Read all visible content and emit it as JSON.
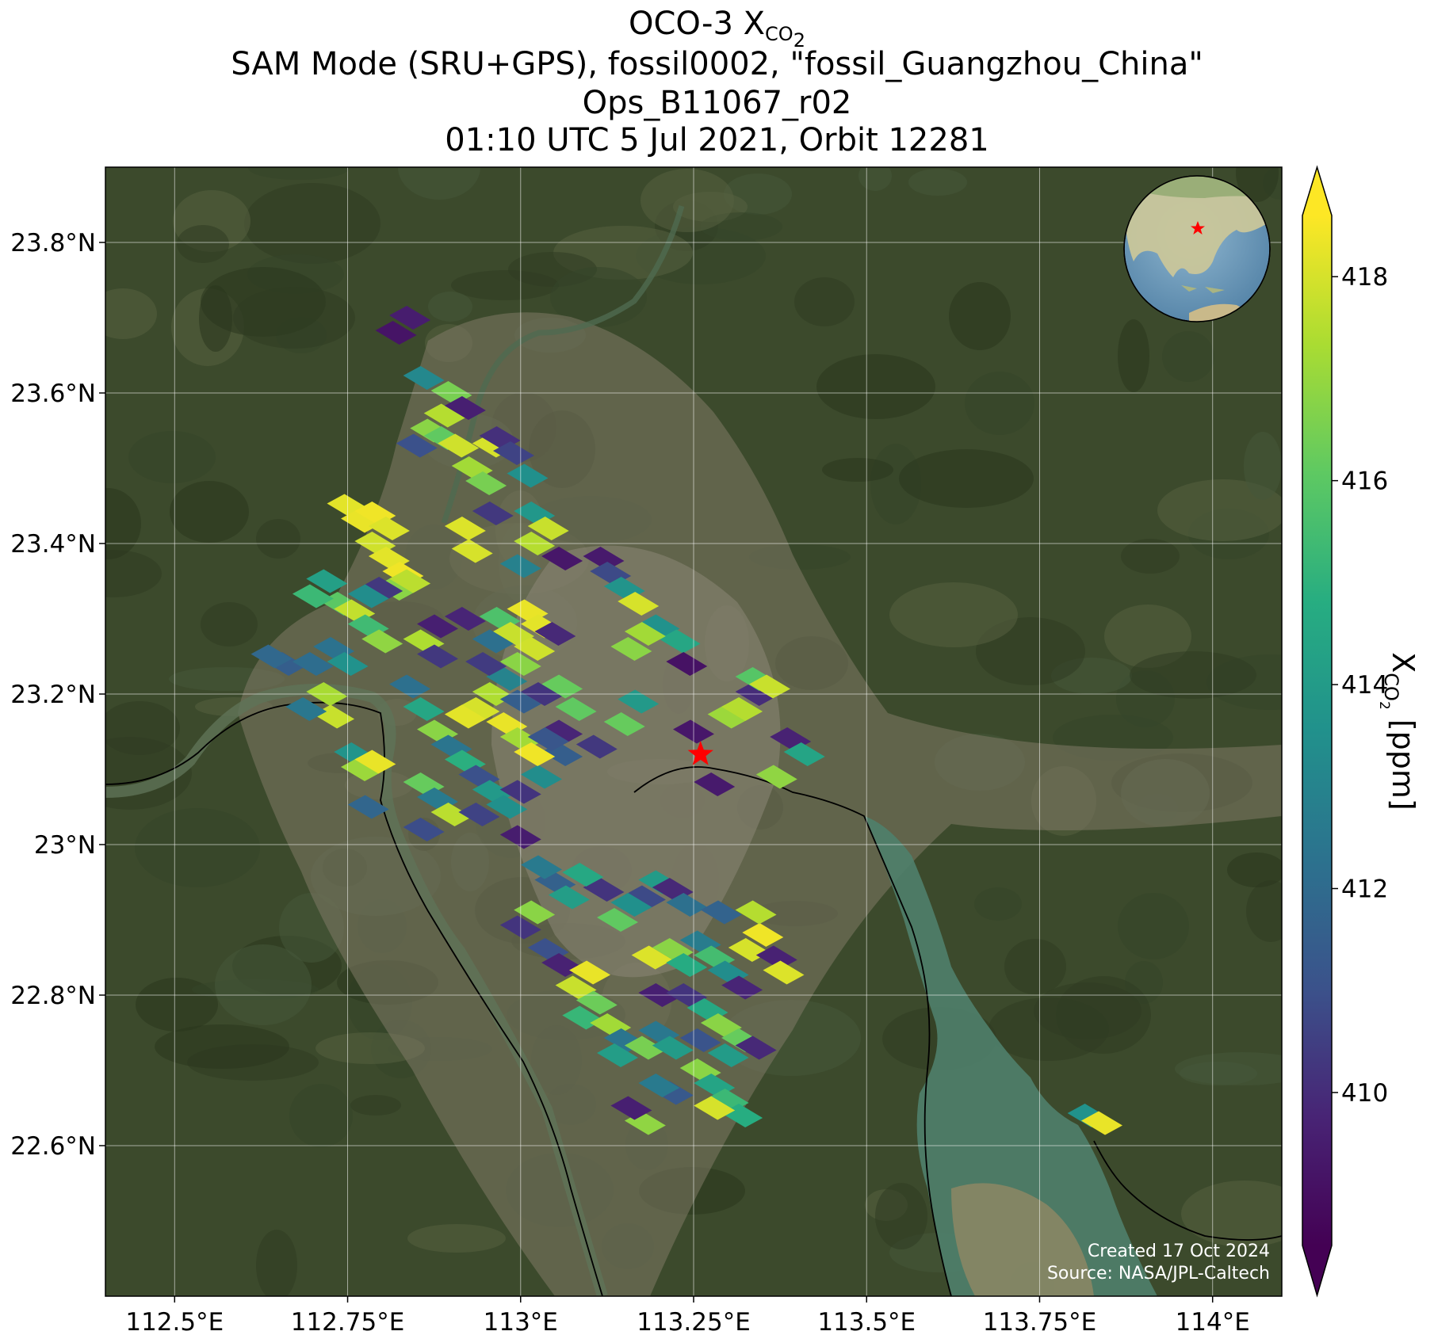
{
  "title": {
    "line1_main": "OCO-3 X",
    "line1_sub": "CO",
    "line1_sub2": "2",
    "line2": "SAM Mode (SRU+GPS), fossil0002, \"fossil_Guangzhou_China\"",
    "line3": "Ops_B11067_r02",
    "line4": "01:10 UTC 5 Jul 2021, Orbit 12281"
  },
  "map": {
    "lon_range": [
      112.4,
      114.1
    ],
    "lat_range": [
      22.4,
      23.9
    ],
    "lon_ticks": [
      {
        "value": 112.5,
        "label": "112.5°E"
      },
      {
        "value": 112.75,
        "label": "112.75°E"
      },
      {
        "value": 113.0,
        "label": "113°E"
      },
      {
        "value": 113.25,
        "label": "113.25°E"
      },
      {
        "value": 113.5,
        "label": "113.5°E"
      },
      {
        "value": 113.75,
        "label": "113.75°E"
      },
      {
        "value": 114.0,
        "label": "114°E"
      }
    ],
    "lat_ticks": [
      {
        "value": 23.8,
        "label": "23.8°N"
      },
      {
        "value": 23.6,
        "label": "23.6°N"
      },
      {
        "value": 23.4,
        "label": "23.4°N"
      },
      {
        "value": 23.2,
        "label": "23.2°N"
      },
      {
        "value": 23.0,
        "label": "23°N"
      },
      {
        "value": 22.8,
        "label": "22.8°N"
      },
      {
        "value": 22.6,
        "label": "22.6°N"
      }
    ],
    "grid": true,
    "target": {
      "lon": 113.26,
      "lat": 23.12,
      "marker": "red-star"
    },
    "basemap": "satellite-imagery",
    "inset": "globe-locator",
    "credit_line1": "Created 17 Oct 2024",
    "credit_line2": "Source: NASA/JPL-Caltech"
  },
  "colorbar": {
    "colormap": "viridis",
    "range": [
      408.5,
      418.6
    ],
    "extend": "both",
    "ticks": [
      410,
      412,
      414,
      416,
      418
    ],
    "tick_labels": [
      "410",
      "412",
      "414",
      "416",
      "418"
    ],
    "label_main": "X",
    "label_sub": "CO",
    "label_sub2": "2",
    "label_unit": " [ppm]"
  },
  "chart_data": {
    "type": "scatter",
    "xlabel": "",
    "ylabel": "",
    "x_unit": "degrees longitude",
    "y_unit": "degrees latitude",
    "value_unit": "ppm",
    "points": [
      [
        112.82,
        23.68,
        409.2
      ],
      [
        112.84,
        23.7,
        409.5
      ],
      [
        112.86,
        23.62,
        413.2
      ],
      [
        112.9,
        23.6,
        416.5
      ],
      [
        112.89,
        23.57,
        417.5
      ],
      [
        112.92,
        23.58,
        409.6
      ],
      [
        112.87,
        23.55,
        416.8
      ],
      [
        112.89,
        23.54,
        416.1
      ],
      [
        112.85,
        23.53,
        411.0
      ],
      [
        112.91,
        23.53,
        417.9
      ],
      [
        112.96,
        23.53,
        418.0
      ],
      [
        112.97,
        23.54,
        410.1
      ],
      [
        112.99,
        23.52,
        410.6
      ],
      [
        112.93,
        23.5,
        417.2
      ],
      [
        112.95,
        23.48,
        416.5
      ],
      [
        113.01,
        23.49,
        413.5
      ],
      [
        112.96,
        23.44,
        410.3
      ],
      [
        112.92,
        23.42,
        418.1
      ],
      [
        112.93,
        23.39,
        418.0
      ],
      [
        113.02,
        23.44,
        413.8
      ],
      [
        113.04,
        23.42,
        417.8
      ],
      [
        113.02,
        23.4,
        417.5
      ],
      [
        113.0,
        23.37,
        412.9
      ],
      [
        113.06,
        23.38,
        409.3
      ],
      [
        113.12,
        23.38,
        409.4
      ],
      [
        113.13,
        23.36,
        410.8
      ],
      [
        113.15,
        23.34,
        413.7
      ],
      [
        113.17,
        23.32,
        418.0
      ],
      [
        113.2,
        23.29,
        413.6
      ],
      [
        113.23,
        23.27,
        414.5
      ],
      [
        113.24,
        23.24,
        409.1
      ],
      [
        112.75,
        23.45,
        418.2
      ],
      [
        112.77,
        23.43,
        418.3
      ],
      [
        112.79,
        23.44,
        418.4
      ],
      [
        112.81,
        23.42,
        418.1
      ],
      [
        112.79,
        23.4,
        417.9
      ],
      [
        112.81,
        23.38,
        418.2
      ],
      [
        112.83,
        23.36,
        418.4
      ],
      [
        112.82,
        23.34,
        416.8
      ],
      [
        112.84,
        23.35,
        417.6
      ],
      [
        112.8,
        23.34,
        410.3
      ],
      [
        112.78,
        23.33,
        413.4
      ],
      [
        112.74,
        23.32,
        416.0
      ],
      [
        112.7,
        23.33,
        415.3
      ],
      [
        112.72,
        23.35,
        414.2
      ],
      [
        112.76,
        23.31,
        417.7
      ],
      [
        112.78,
        23.29,
        415.4
      ],
      [
        112.8,
        23.27,
        416.9
      ],
      [
        112.73,
        23.26,
        412.3
      ],
      [
        112.66,
        23.24,
        411.5
      ],
      [
        112.64,
        23.25,
        411.9
      ],
      [
        112.7,
        23.24,
        412.1
      ],
      [
        112.75,
        23.24,
        413.6
      ],
      [
        112.72,
        23.2,
        417.3
      ],
      [
        112.73,
        23.17,
        417.8
      ],
      [
        112.69,
        23.18,
        412.5
      ],
      [
        112.76,
        23.12,
        413.7
      ],
      [
        112.77,
        23.1,
        417.1
      ],
      [
        112.79,
        23.11,
        418.3
      ],
      [
        112.78,
        23.05,
        411.8
      ],
      [
        112.86,
        23.27,
        417.4
      ],
      [
        112.88,
        23.25,
        410.3
      ],
      [
        112.84,
        23.21,
        412.2
      ],
      [
        112.86,
        23.18,
        414.5
      ],
      [
        112.88,
        23.15,
        416.8
      ],
      [
        112.9,
        23.13,
        412.4
      ],
      [
        112.92,
        23.11,
        414.9
      ],
      [
        112.94,
        23.09,
        411.0
      ],
      [
        112.96,
        23.07,
        413.9
      ],
      [
        112.86,
        23.08,
        416.2
      ],
      [
        112.88,
        23.06,
        412.6
      ],
      [
        112.9,
        23.04,
        417.6
      ],
      [
        112.86,
        23.02,
        410.9
      ],
      [
        112.94,
        23.04,
        410.6
      ],
      [
        112.98,
        23.05,
        413.5
      ],
      [
        113.0,
        23.01,
        409.5
      ],
      [
        113.0,
        23.07,
        410.2
      ],
      [
        113.03,
        23.09,
        413.4
      ],
      [
        113.06,
        23.12,
        411.5
      ],
      [
        113.06,
        23.15,
        409.8
      ],
      [
        113.08,
        23.18,
        416.1
      ],
      [
        112.97,
        23.3,
        415.7
      ],
      [
        112.99,
        23.28,
        417.8
      ],
      [
        113.01,
        23.31,
        418.3
      ],
      [
        113.03,
        23.29,
        418.2
      ],
      [
        113.02,
        23.26,
        417.9
      ],
      [
        113.0,
        23.24,
        416.8
      ],
      [
        112.98,
        23.22,
        413.0
      ],
      [
        112.96,
        23.2,
        417.4
      ],
      [
        112.94,
        23.18,
        418.0
      ],
      [
        112.92,
        23.17,
        418.2
      ],
      [
        112.98,
        23.16,
        418.3
      ],
      [
        113.0,
        23.14,
        417.2
      ],
      [
        113.02,
        23.12,
        418.4
      ],
      [
        113.04,
        23.14,
        411.2
      ],
      [
        113.06,
        23.21,
        416.2
      ],
      [
        113.03,
        23.2,
        410.2
      ],
      [
        113.0,
        23.19,
        411.5
      ],
      [
        112.95,
        23.24,
        410.4
      ],
      [
        112.96,
        23.27,
        412.2
      ],
      [
        112.92,
        23.3,
        409.8
      ],
      [
        112.88,
        23.29,
        409.6
      ],
      [
        113.05,
        23.28,
        409.9
      ],
      [
        113.16,
        23.26,
        416.8
      ],
      [
        113.18,
        23.28,
        417.2
      ],
      [
        113.17,
        23.19,
        413.9
      ],
      [
        113.15,
        23.16,
        416.2
      ],
      [
        113.11,
        23.13,
        410.3
      ],
      [
        113.25,
        23.15,
        409.3
      ],
      [
        113.28,
        23.08,
        409.4
      ],
      [
        113.3,
        23.17,
        417.1
      ],
      [
        113.32,
        23.18,
        417.5
      ],
      [
        113.34,
        23.2,
        410.0
      ],
      [
        113.34,
        23.22,
        415.9
      ],
      [
        113.36,
        23.21,
        417.8
      ],
      [
        113.37,
        23.09,
        416.9
      ],
      [
        113.39,
        23.14,
        409.7
      ],
      [
        113.41,
        23.12,
        414.4
      ],
      [
        113.2,
        22.95,
        414.0
      ],
      [
        113.22,
        22.94,
        409.9
      ],
      [
        113.24,
        22.92,
        412.2
      ],
      [
        113.18,
        22.93,
        410.8
      ],
      [
        113.16,
        22.92,
        413.5
      ],
      [
        113.12,
        22.94,
        410.2
      ],
      [
        113.14,
        22.9,
        416.1
      ],
      [
        113.05,
        22.95,
        411.6
      ],
      [
        113.07,
        22.93,
        414.1
      ],
      [
        113.09,
        22.96,
        414.6
      ],
      [
        113.03,
        22.97,
        412.6
      ],
      [
        113.02,
        22.91,
        416.8
      ],
      [
        113.0,
        22.89,
        410.2
      ],
      [
        113.04,
        22.86,
        411.0
      ],
      [
        113.06,
        22.84,
        409.7
      ],
      [
        113.08,
        22.81,
        417.8
      ],
      [
        113.1,
        22.83,
        418.3
      ],
      [
        113.11,
        22.79,
        416.3
      ],
      [
        113.09,
        22.77,
        415.2
      ],
      [
        113.13,
        22.76,
        417.2
      ],
      [
        113.15,
        22.74,
        412.4
      ],
      [
        113.18,
        22.73,
        416.5
      ],
      [
        113.2,
        22.75,
        412.5
      ],
      [
        113.22,
        22.73,
        414.0
      ],
      [
        113.19,
        22.85,
        418.1
      ],
      [
        113.22,
        22.86,
        416.8
      ],
      [
        113.24,
        22.84,
        414.7
      ],
      [
        113.26,
        22.87,
        412.7
      ],
      [
        113.28,
        22.85,
        415.5
      ],
      [
        113.3,
        22.83,
        413.4
      ],
      [
        113.32,
        22.81,
        409.8
      ],
      [
        113.2,
        22.8,
        409.6
      ],
      [
        113.24,
        22.8,
        410.2
      ],
      [
        113.27,
        22.78,
        414.6
      ],
      [
        113.29,
        22.76,
        416.8
      ],
      [
        113.26,
        22.74,
        411.1
      ],
      [
        113.3,
        22.72,
        414.0
      ],
      [
        113.32,
        22.74,
        416.2
      ],
      [
        113.34,
        22.73,
        409.9
      ],
      [
        113.33,
        22.86,
        418.0
      ],
      [
        113.35,
        22.88,
        418.4
      ],
      [
        113.37,
        22.85,
        409.7
      ],
      [
        113.38,
        22.83,
        418.1
      ],
      [
        113.34,
        22.91,
        417.5
      ],
      [
        113.29,
        22.91,
        411.7
      ],
      [
        113.14,
        22.72,
        414.1
      ],
      [
        113.26,
        22.7,
        416.8
      ],
      [
        113.28,
        22.68,
        414.4
      ],
      [
        113.3,
        22.66,
        415.3
      ],
      [
        113.32,
        22.64,
        414.8
      ],
      [
        113.28,
        22.65,
        418.0
      ],
      [
        113.22,
        22.67,
        411.3
      ],
      [
        113.2,
        22.68,
        412.6
      ],
      [
        113.18,
        22.63,
        416.9
      ],
      [
        113.16,
        22.65,
        409.6
      ],
      [
        113.82,
        22.64,
        413.6
      ],
      [
        113.84,
        22.63,
        418.3
      ]
    ]
  }
}
